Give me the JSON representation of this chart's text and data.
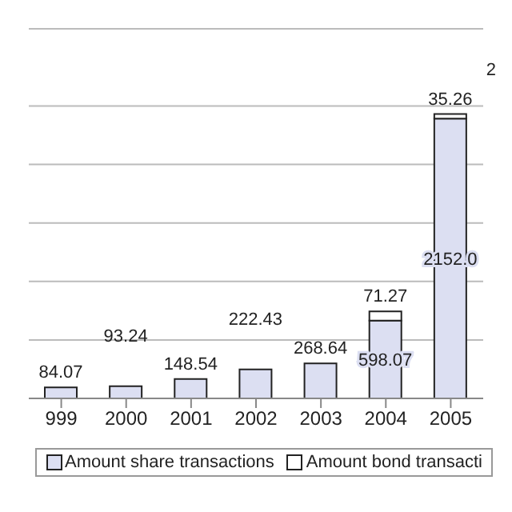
{
  "chart_data": {
    "type": "bar",
    "stacked": true,
    "categories": [
      "999",
      "2000",
      "2001",
      "2002",
      "2003",
      "2004",
      "2005"
    ],
    "series": [
      {
        "name": "Amount share transactions",
        "color": "#dcdff2",
        "values": [
          84.07,
          93.24,
          148.54,
          222.43,
          268.64,
          598.07,
          2152.0
        ],
        "value_labels": [
          "84.07",
          "93.24",
          "148.54",
          "222.43",
          "268.64",
          "598.07",
          "2152.0"
        ]
      },
      {
        "name": "Amount bond transacti",
        "color": "#ffffff",
        "values": [
          null,
          null,
          null,
          null,
          null,
          71.27,
          35.26
        ],
        "value_labels": [
          null,
          null,
          null,
          null,
          null,
          "71.27",
          "35.26"
        ]
      }
    ],
    "annotations": [
      "2"
    ],
    "grid": "y",
    "legend": "bottom"
  }
}
